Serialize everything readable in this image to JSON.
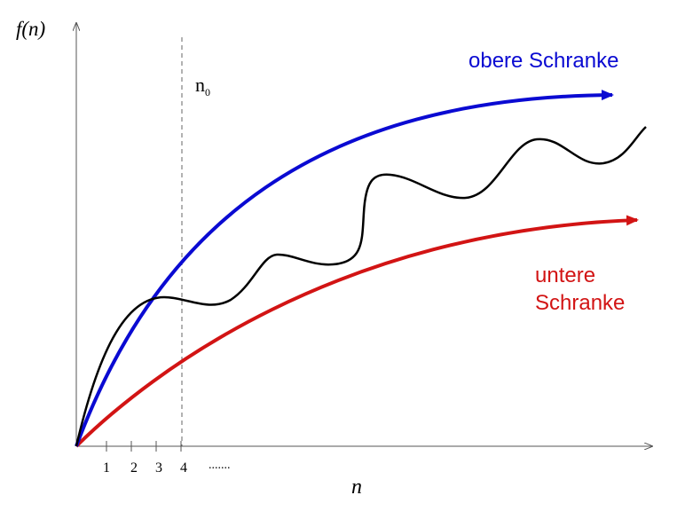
{
  "labels": {
    "y_axis": "f(n)",
    "x_axis": "n",
    "n0_main": "n",
    "n0_sub": "0",
    "upper": "obere Schranke",
    "lower_line1": "untere",
    "lower_line2": "Schranke",
    "ellipsis": "......."
  },
  "ticks": [
    "1",
    "2",
    "3",
    "4"
  ],
  "colors": {
    "upper": "#0a0ad2",
    "lower": "#d21414",
    "function": "#000000",
    "axis": "#555555",
    "n0_line": "#666666"
  }
}
